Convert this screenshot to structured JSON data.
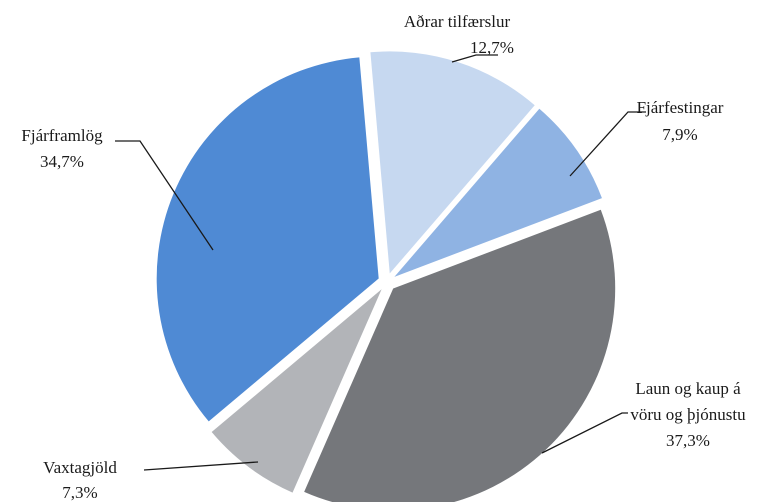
{
  "chart_data": {
    "type": "pie",
    "title": "",
    "legend": "none",
    "slices": [
      {
        "label": "Aðrar tilfærslur",
        "value_label": "12,7%",
        "value": 12.7,
        "color": "#c6d8f0"
      },
      {
        "label": "Fjárfestingar",
        "value_label": "7,9%",
        "value": 7.9,
        "color": "#8fb3e3"
      },
      {
        "label_lines": [
          "Laun og kaup á",
          "vöru og þjónustu"
        ],
        "value_label": "37,3%",
        "value": 37.3,
        "color": "#75777b"
      },
      {
        "label": "Vaxtagjöld",
        "value_label": "7,3%",
        "value": 7.3,
        "color": "#b2b4b8"
      },
      {
        "label": "Fjárframlög",
        "value_label": "34,7%",
        "value": 34.7,
        "color": "#4f8ad4"
      }
    ]
  }
}
